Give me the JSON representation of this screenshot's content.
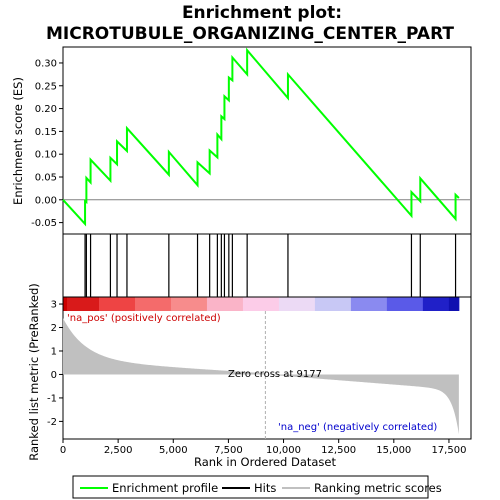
{
  "chart_data": {
    "type": "line",
    "title_line1": "Enrichment plot:",
    "title_line2": "MICROTUBULE_ORGANIZING_CENTER_PART",
    "xlabel": "Rank in Ordered Dataset",
    "ylabel_top": "Enrichment score (ES)",
    "ylabel_bottom": "Ranked list metric (PreRanked)",
    "xlim": [
      0,
      18500
    ],
    "es_ylim": [
      -0.075,
      0.335
    ],
    "metric_ylim": [
      -2.75,
      3.3
    ],
    "x_ticks": [
      0,
      2500,
      5000,
      7500,
      10000,
      12500,
      15000,
      17500
    ],
    "x_tick_labels": [
      "0",
      "2,500",
      "5,000",
      "7,500",
      "10,000",
      "12,500",
      "15,000",
      "17,500"
    ],
    "es_ticks": [
      -0.05,
      0.0,
      0.05,
      0.1,
      0.15,
      0.2,
      0.25,
      0.3
    ],
    "es_tick_labels": [
      "-0.05",
      "0.00",
      "0.05",
      "0.10",
      "0.15",
      "0.20",
      "0.25",
      "0.30"
    ],
    "metric_ticks": [
      -2,
      -1,
      0,
      1,
      2,
      3
    ],
    "metric_tick_labels": [
      "-2",
      "-1",
      "0",
      "1",
      "2",
      "3"
    ],
    "hits": [
      1000,
      1060,
      1250,
      2150,
      2450,
      2900,
      4800,
      6100,
      6650,
      7000,
      7180,
      7320,
      7520,
      7680,
      8350,
      10200,
      15800,
      16200,
      17800
    ],
    "es_profile": [
      [
        0,
        0.0
      ],
      [
        1000,
        -0.053
      ],
      [
        1000,
        -0.003
      ],
      [
        1060,
        -0.005
      ],
      [
        1060,
        0.048
      ],
      [
        1250,
        0.038
      ],
      [
        1250,
        0.088
      ],
      [
        2150,
        0.042
      ],
      [
        2150,
        0.092
      ],
      [
        2450,
        0.078
      ],
      [
        2450,
        0.128
      ],
      [
        2900,
        0.107
      ],
      [
        2900,
        0.157
      ],
      [
        4800,
        0.055
      ],
      [
        4800,
        0.105
      ],
      [
        6100,
        0.032
      ],
      [
        6100,
        0.082
      ],
      [
        6650,
        0.058
      ],
      [
        6650,
        0.108
      ],
      [
        7000,
        0.093
      ],
      [
        7000,
        0.143
      ],
      [
        7180,
        0.133
      ],
      [
        7180,
        0.183
      ],
      [
        7320,
        0.177
      ],
      [
        7320,
        0.227
      ],
      [
        7520,
        0.218
      ],
      [
        7520,
        0.268
      ],
      [
        7680,
        0.262
      ],
      [
        7680,
        0.312
      ],
      [
        8350,
        0.275
      ],
      [
        8350,
        0.328
      ],
      [
        10200,
        0.223
      ],
      [
        10200,
        0.275
      ],
      [
        15800,
        -0.035
      ],
      [
        15800,
        0.017
      ],
      [
        16200,
        -0.003
      ],
      [
        16200,
        0.047
      ],
      [
        17800,
        -0.042
      ],
      [
        17800,
        0.011
      ],
      [
        17950,
        0.004
      ]
    ],
    "zero_cross": 9177,
    "zero_cross_label": "Zero cross at 9177",
    "pos_label": "'na_pos' (positively correlated)",
    "neg_label": "'na_neg' (negatively correlated)",
    "n_genes": 17950,
    "legend": [
      "Enrichment profile",
      "Hits",
      "Ranking metric scores"
    ],
    "colors": {
      "es_line": "#00ff00",
      "hit": "#000000",
      "metric_fill": "#c0c0c0",
      "pos_label": "#cc0000",
      "neg_label": "#0000cc",
      "zero_line": "#b0b0b0"
    },
    "band_colors": [
      "#d91a1a",
      "#ee4444",
      "#f46b6b",
      "#f78c8c",
      "#fab4c8",
      "#fccce8",
      "#ecdaf5",
      "#c8c8f5",
      "#8a8af0",
      "#5a5ae8",
      "#2020c8"
    ]
  }
}
